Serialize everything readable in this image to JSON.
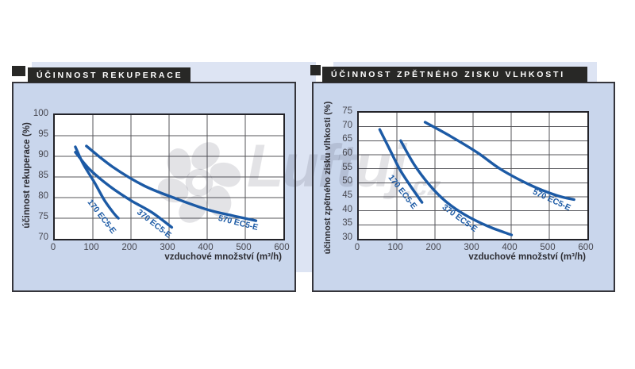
{
  "watermark": {
    "icon": "fan-icon",
    "text_main": "Luftuj",
    "text_suffix": ".cz"
  },
  "chart_data": [
    {
      "type": "line",
      "title": "ÚČINNOST REKUPERACE",
      "xlabel": "vzduchové množství (m³/h)",
      "ylabel": "účinnost rekuperace (%)",
      "xlim": [
        0,
        600
      ],
      "ylim": [
        70,
        100
      ],
      "xticks": [
        0,
        100,
        200,
        300,
        400,
        500,
        600
      ],
      "yticks": [
        70,
        75,
        80,
        85,
        90,
        95,
        100
      ],
      "grid": true,
      "legend_position": "labels-on-curves",
      "line_color": "#1c5aa5",
      "series": [
        {
          "name": "170 EC5-E",
          "points": [
            [
              54,
              92.3
            ],
            [
              75,
              88.1
            ],
            [
              104,
              83.7
            ],
            [
              130,
              79.4
            ],
            [
              155,
              76.2
            ],
            [
              167,
              75.0
            ]
          ]
        },
        {
          "name": "370 EC5-E",
          "points": [
            [
              54,
              91.0
            ],
            [
              92,
              86.8
            ],
            [
              145,
              82.7
            ],
            [
              200,
              79.3
            ],
            [
              255,
              76.4
            ],
            [
              307,
              72.8
            ]
          ]
        },
        {
          "name": "570 EC5-E",
          "points": [
            [
              83,
              92.5
            ],
            [
              151,
              87.5
            ],
            [
              234,
              82.9
            ],
            [
              317,
              79.8
            ],
            [
              400,
              77.1
            ],
            [
              468,
              75.6
            ],
            [
              528,
              74.4
            ]
          ]
        }
      ]
    },
    {
      "type": "line",
      "title": "ÚČINNOST ZPĚTNÉHO ZISKU VLHKOSTI",
      "xlabel": "vzduchové množství (m³/h)",
      "ylabel": "účinnost zpětného zisku vlhkosti (%)",
      "xlim": [
        0,
        600
      ],
      "ylim": [
        30,
        75
      ],
      "xticks": [
        0,
        100,
        200,
        300,
        400,
        500,
        600
      ],
      "yticks": [
        30,
        35,
        40,
        45,
        50,
        55,
        60,
        65,
        70,
        75
      ],
      "grid": true,
      "legend_position": "labels-on-curves",
      "line_color": "#1c5aa5",
      "series": [
        {
          "name": "170 EC5-E",
          "points": [
            [
              55,
              69.0
            ],
            [
              83,
              61.4
            ],
            [
              108,
              54.7
            ],
            [
              135,
              49.0
            ],
            [
              166,
              43.0
            ]
          ]
        },
        {
          "name": "370 EC5-E",
          "points": [
            [
              110,
              65.0
            ],
            [
              145,
              56.6
            ],
            [
              187,
              49.0
            ],
            [
              228,
              43.4
            ],
            [
              276,
              38.8
            ],
            [
              339,
              34.5
            ],
            [
              401,
              31.4
            ]
          ]
        },
        {
          "name": "570 EC5-E",
          "points": [
            [
              174,
              71.6
            ],
            [
              242,
              66.5
            ],
            [
              311,
              60.8
            ],
            [
              374,
              54.7
            ],
            [
              450,
              49.2
            ],
            [
              519,
              45.5
            ],
            [
              565,
              44.0
            ]
          ]
        }
      ]
    }
  ]
}
